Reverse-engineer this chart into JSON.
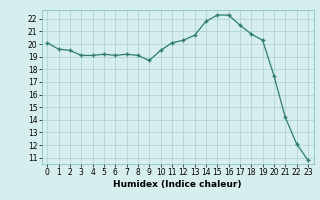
{
  "x": [
    0,
    1,
    2,
    3,
    4,
    5,
    6,
    7,
    8,
    9,
    10,
    11,
    12,
    13,
    14,
    15,
    16,
    17,
    18,
    19,
    20,
    21,
    22,
    23
  ],
  "y": [
    20.1,
    19.6,
    19.5,
    19.1,
    19.1,
    19.2,
    19.1,
    19.2,
    19.1,
    18.7,
    19.5,
    20.1,
    20.3,
    20.7,
    21.8,
    22.3,
    22.3,
    21.5,
    20.8,
    20.3,
    17.5,
    14.2,
    12.1,
    10.8
  ],
  "xlabel": "Humidex (Indice chaleur)",
  "xlim": [
    -0.5,
    23.5
  ],
  "ylim": [
    10.5,
    22.7
  ],
  "yticks": [
    11,
    12,
    13,
    14,
    15,
    16,
    17,
    18,
    19,
    20,
    21,
    22
  ],
  "xticks": [
    0,
    1,
    2,
    3,
    4,
    5,
    6,
    7,
    8,
    9,
    10,
    11,
    12,
    13,
    14,
    15,
    16,
    17,
    18,
    19,
    20,
    21,
    22,
    23
  ],
  "line_color": "#2e7d6e",
  "marker": "+",
  "bg_color": "#d6eeed",
  "grid_color": "#aacfcf",
  "label_fontsize": 6.5,
  "tick_fontsize": 5.5
}
